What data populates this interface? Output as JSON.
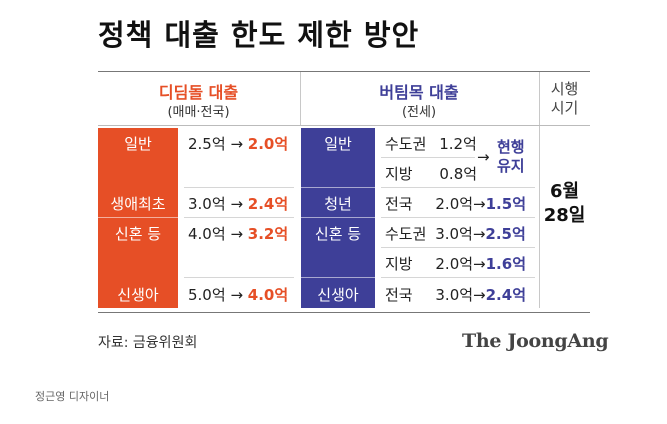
{
  "title": "정책 대출 한도 제한 방안",
  "headers": {
    "left_main": "디딤돌 대출",
    "left_sub": "(매매·전국)",
    "right_main": "버팀목 대출",
    "right_sub": "(전세)",
    "time_line1": "시행",
    "time_line2": "시기"
  },
  "didimdol": [
    {
      "category": "일반",
      "before": "2.5억",
      "arrow": "→",
      "after": "2.0억"
    },
    {
      "category": "생애최초",
      "before": "3.0억",
      "arrow": "→",
      "after": "2.4억"
    },
    {
      "category": "신혼 등",
      "before": "4.0억",
      "arrow": "→",
      "after": "3.2억"
    },
    {
      "category": "신생아",
      "before": "5.0억",
      "arrow": "→",
      "after": "4.0억"
    }
  ],
  "beotimmok_categories": [
    "일반",
    "청년",
    "신혼 등",
    "신생아"
  ],
  "beotimmok_general": {
    "rows": [
      {
        "region": "수도권",
        "amount": "1.2억"
      },
      {
        "region": "지방",
        "amount": "0.8억"
      }
    ],
    "arrow": "→",
    "result_line1": "현행",
    "result_line2": "유지"
  },
  "beotimmok_rows": [
    {
      "region": "전국",
      "amount": "2.0억",
      "arrow": "→",
      "after": "1.5억"
    },
    {
      "region": "수도권",
      "amount": "3.0억",
      "arrow": "→",
      "after": "2.5억"
    },
    {
      "region": "지방",
      "amount": "2.0억",
      "arrow": "→",
      "after": "1.6억"
    },
    {
      "region": "전국",
      "amount": "3.0억",
      "arrow": "→",
      "after": "2.4억"
    }
  ],
  "effective_date": {
    "line1": "6월",
    "line2": "28일"
  },
  "source": "자료: 금융위원회",
  "logo": "The JoongAng",
  "credit": "정근영 디자이너",
  "colors": {
    "didimdol": "#e64f26",
    "beotimmok": "#3e3f98"
  }
}
